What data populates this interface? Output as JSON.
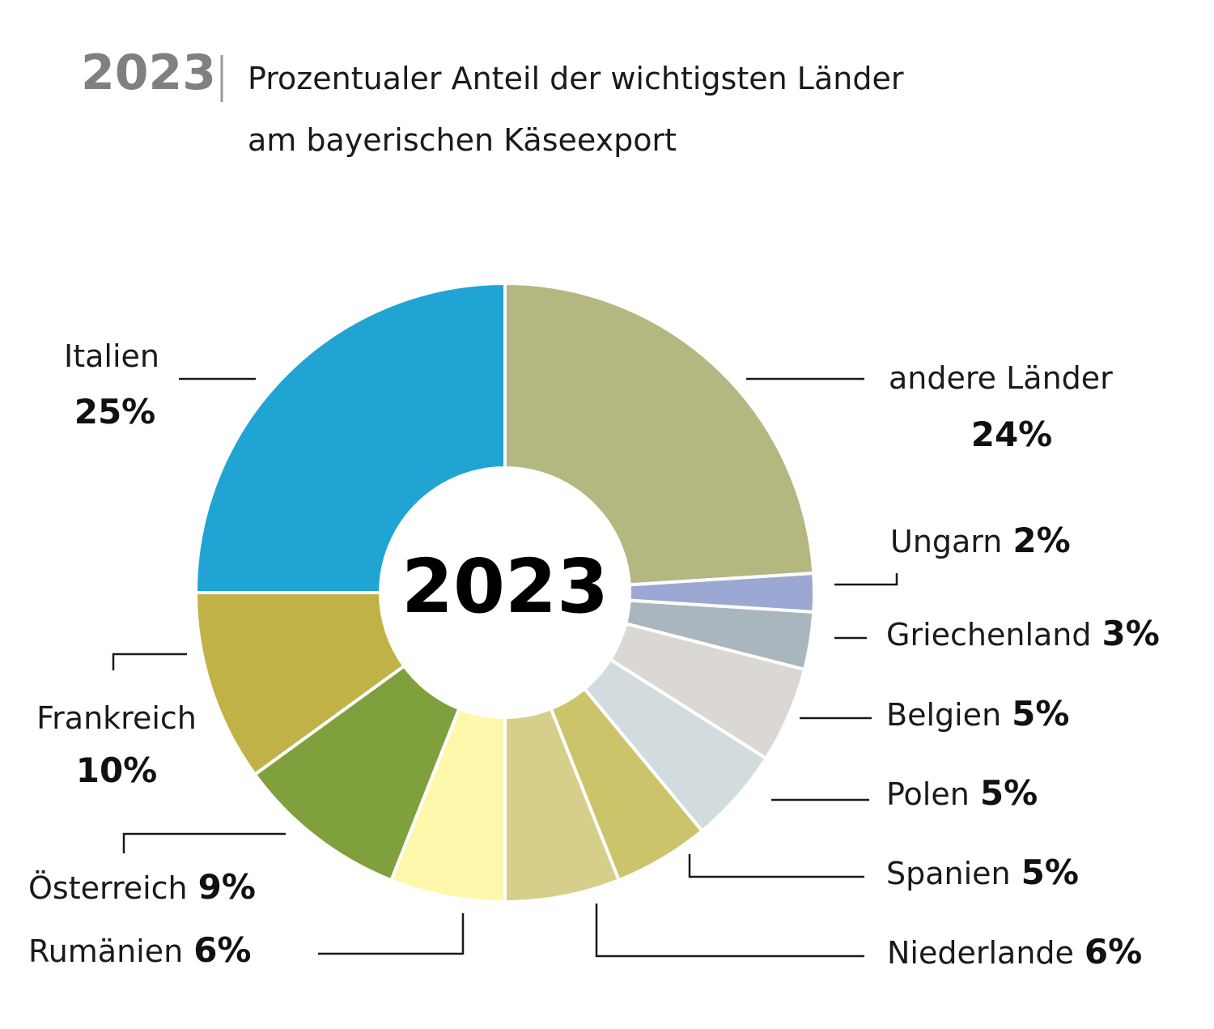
{
  "header": {
    "year": "2023",
    "title_line1": "Prozentualer Anteil der wichtigsten Länder",
    "title_line2": "am bayerischen Käseexport"
  },
  "chart_data": {
    "type": "pie",
    "style": "donut",
    "center_label": "2023",
    "slices": [
      {
        "name": "andere Länder",
        "value": 24,
        "label": "24%",
        "color": "#b4b780"
      },
      {
        "name": "Ungarn",
        "value": 2,
        "label": "2%",
        "color": "#9ba8d3"
      },
      {
        "name": "Griechenland",
        "value": 3,
        "label": "3%",
        "color": "#a9b6bd"
      },
      {
        "name": "Belgien",
        "value": 5,
        "label": "5%",
        "color": "#dbd8d3"
      },
      {
        "name": "Polen",
        "value": 5,
        "label": "5%",
        "color": "#d2dcdf"
      },
      {
        "name": "Spanien",
        "value": 5,
        "label": "5%",
        "color": "#ccc46b"
      },
      {
        "name": "Niederlande",
        "value": 6,
        "label": "6%",
        "color": "#d6cf8c"
      },
      {
        "name": "Rumänien",
        "value": 6,
        "label": "6%",
        "color": "#fff7ab"
      },
      {
        "name": "Österreich",
        "value": 9,
        "label": "9%",
        "color": "#80a03d"
      },
      {
        "name": "Frankreich",
        "value": 10,
        "label": "10%",
        "color": "#c0b247"
      },
      {
        "name": "Italien",
        "value": 25,
        "label": "25%",
        "color": "#1fa4d4"
      }
    ]
  }
}
